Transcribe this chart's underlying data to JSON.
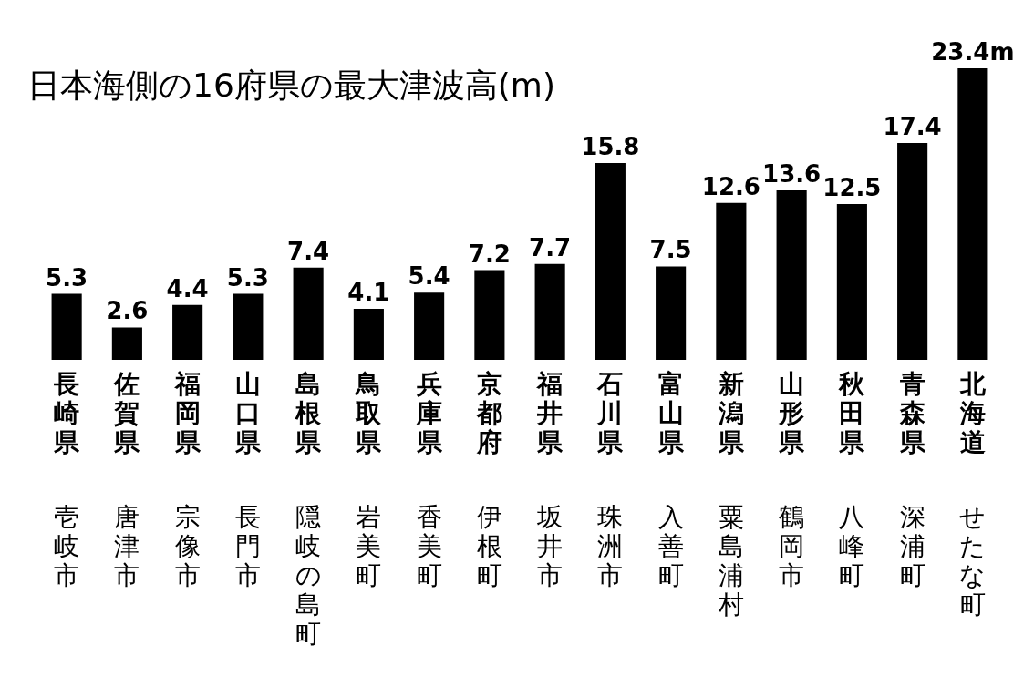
{
  "chart_data": {
    "type": "bar",
    "title": "日本海側の16府県の最大津波高(m)",
    "categories": [
      "長崎県",
      "佐賀県",
      "福岡県",
      "山口県",
      "島根県",
      "鳥取県",
      "兵庫県",
      "京都府",
      "福井県",
      "石川県",
      "富山県",
      "新潟県",
      "山形県",
      "秋田県",
      "青森県",
      "北海道"
    ],
    "annotations": [
      "壱岐市",
      "唐津市",
      "宗像市",
      "長門市",
      "隠岐の島町",
      "岩美町",
      "香美町",
      "伊根町",
      "坂井市",
      "珠洲市",
      "入善町",
      "粟島浦村",
      "鶴岡市",
      "八峰町",
      "深浦町",
      "せたな町"
    ],
    "values": [
      5.3,
      2.6,
      4.4,
      5.3,
      7.4,
      4.1,
      5.4,
      7.2,
      7.7,
      15.8,
      7.5,
      12.6,
      13.6,
      12.5,
      17.4,
      23.4
    ],
    "value_labels": [
      "5.3",
      "2.6",
      "4.4",
      "5.3",
      "7.4",
      "4.1",
      "5.4",
      "7.2",
      "7.7",
      "15.8",
      "7.5",
      "12.6",
      "13.6",
      "12.5",
      "17.4",
      "23.4m"
    ],
    "color": "#000000"
  }
}
